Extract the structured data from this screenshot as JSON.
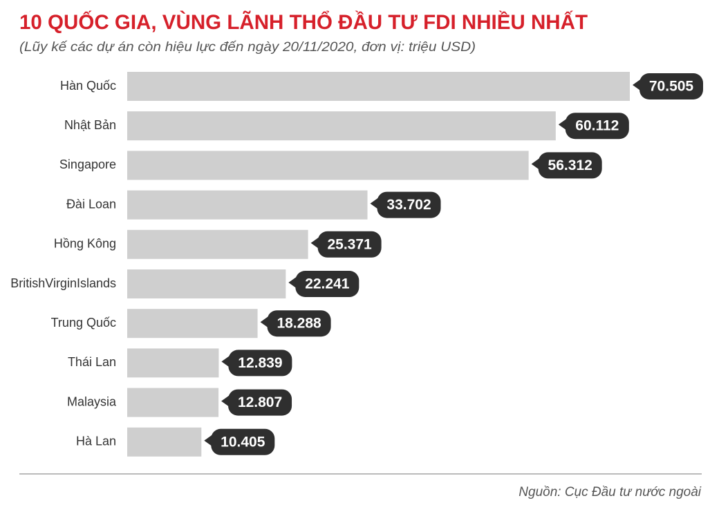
{
  "chart_data": {
    "type": "bar",
    "title": "10 QUỐC GIA, VÙNG LÃNH THỔ ĐẦU TƯ FDI NHIỀU NHẤT",
    "subtitle": "(Lũy kế các dự án còn hiệu lực đến ngày 20/11/2020, đơn vị: triệu USD)",
    "categories": [
      "Hàn Quốc",
      "Nhật Bản",
      "Singapore",
      "Đài Loan",
      "Hồng Kông",
      "BritishVirginIslands",
      "Trung Quốc",
      "Thái Lan",
      "Malaysia",
      "Hà Lan"
    ],
    "values": [
      70505,
      60112,
      56312,
      33702,
      25371,
      22241,
      18288,
      12839,
      12807,
      10405
    ],
    "value_labels": [
      "70.505",
      "60.112",
      "56.312",
      "33.702",
      "25.371",
      "22.241",
      "18.288",
      "12.839",
      "12.807",
      "10.405"
    ],
    "color": "#cfcfcf",
    "source": "Nguồn: Cục Đầu tư nước ngoài"
  }
}
